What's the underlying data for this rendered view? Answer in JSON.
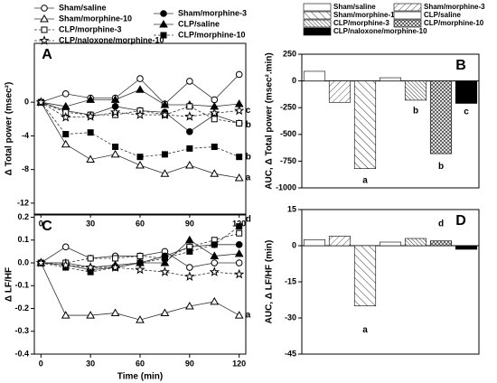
{
  "chart_data": [
    {
      "type": "line",
      "panel": "A",
      "ylabel": "Δ Total power (msec²)",
      "x": [
        0,
        15,
        30,
        45,
        60,
        75,
        90,
        105,
        120
      ],
      "xlim": [
        -4,
        124
      ],
      "xticks": [
        0,
        30,
        60,
        90,
        120
      ],
      "ylim": [
        -13.3,
        7
      ],
      "yticks": [
        -12,
        -8,
        -4,
        0
      ],
      "series": [
        {
          "name": "Sham/saline",
          "marker": "circle",
          "filled": false,
          "dashed": false,
          "values": [
            0,
            1,
            0.5,
            0.5,
            2.8,
            -0.2,
            2.5,
            0.3,
            3.3
          ]
        },
        {
          "name": "Sham/morphine-3",
          "marker": "circle",
          "filled": true,
          "dashed": false,
          "values": [
            0,
            -1,
            -1.5,
            -0.5,
            -1,
            -1.2,
            -3.5,
            -1.5,
            -2.5
          ]
        },
        {
          "name": "Sham/morphine-10",
          "marker": "triangle",
          "filled": false,
          "dashed": false,
          "values": [
            0,
            -5,
            -6.8,
            -6.2,
            -7.5,
            -8.5,
            -7.5,
            -8.5,
            -9
          ]
        },
        {
          "name": "CLP/saline",
          "marker": "triangle",
          "filled": true,
          "dashed": false,
          "values": [
            0,
            -0.5,
            0.3,
            0.3,
            1.5,
            -0.3,
            -0.3,
            -0.5,
            -0.2
          ]
        },
        {
          "name": "CLP/morphine-3",
          "marker": "square",
          "filled": false,
          "dashed": true,
          "values": [
            0,
            -1.2,
            -1.5,
            -1.5,
            -1,
            -1.5,
            -0.5,
            -2,
            -2.5
          ]
        },
        {
          "name": "CLP/morphine-10",
          "marker": "square",
          "filled": true,
          "dashed": true,
          "values": [
            0,
            -3.8,
            -3.6,
            -5.3,
            -6.5,
            -6.2,
            -5.5,
            -5.3,
            -6.5
          ]
        },
        {
          "name": "CLP/naloxone/morphine-10",
          "marker": "star",
          "filled": false,
          "dashed": true,
          "values": [
            0,
            -1.8,
            -1.7,
            -1.2,
            -1.5,
            -1.5,
            -1.7,
            -1.3,
            -1
          ]
        }
      ],
      "annotations": [
        {
          "x": 120,
          "y": -1,
          "text": "c"
        },
        {
          "x": 120,
          "y": -2.7,
          "text": "b"
        },
        {
          "x": 120,
          "y": -6.5,
          "text": "b"
        },
        {
          "x": 120,
          "y": -9,
          "text": "a"
        }
      ]
    },
    {
      "type": "bar",
      "panel": "B",
      "ylabel": "AUC, Δ Total power (msec².min)",
      "categories": [
        "Sham/saline",
        "Sham/morphine-3",
        "Sham/morphine-10",
        "CLP/saline",
        "CLP/morphine-3",
        "CLP/morphine-10",
        "CLP/naloxone/morphine-10"
      ],
      "fills": [
        "white",
        "diag",
        "backdiag",
        "white",
        "dense",
        "cross",
        "black"
      ],
      "values": [
        90,
        -200,
        -820,
        30,
        -180,
        -680,
        -210
      ],
      "ylim": [
        -1000,
        250
      ],
      "yticks": [
        -1000,
        -750,
        -500,
        -250,
        0,
        250
      ],
      "annotations": [
        {
          "index": 2,
          "y": -930,
          "text": "a"
        },
        {
          "index": 4,
          "y": -280,
          "text": "b"
        },
        {
          "index": 5,
          "y": -800,
          "text": "b"
        },
        {
          "index": 6,
          "y": -290,
          "text": "c"
        }
      ]
    },
    {
      "type": "line",
      "panel": "C",
      "ylabel": "Δ LF/HF",
      "xlabel": "Time (min)",
      "x": [
        0,
        15,
        30,
        45,
        60,
        75,
        90,
        105,
        120
      ],
      "xlim": [
        -4,
        124
      ],
      "xticks": [
        0,
        30,
        60,
        90,
        120
      ],
      "ylim": [
        -0.4,
        0.21
      ],
      "yticks": [
        -0.4,
        -0.3,
        -0.2,
        -0.1,
        {
          "value": 0,
          "label": "0.0"
        },
        0.1,
        0.2
      ],
      "series": [
        {
          "marker": "circle",
          "filled": false,
          "dashed": false,
          "values": [
            0,
            0.07,
            0.02,
            0.03,
            0.03,
            0.05,
            -0.02,
            0,
            0
          ]
        },
        {
          "marker": "circle",
          "filled": true,
          "dashed": false,
          "values": [
            0,
            -0.01,
            -0.03,
            -0.02,
            0,
            0.03,
            0.07,
            0.08,
            0.08
          ]
        },
        {
          "marker": "triangle",
          "filled": false,
          "dashed": false,
          "values": [
            0,
            -0.23,
            -0.23,
            -0.22,
            -0.25,
            -0.22,
            -0.19,
            -0.17,
            -0.23
          ]
        },
        {
          "marker": "triangle",
          "filled": true,
          "dashed": false,
          "values": [
            0,
            0,
            -0.02,
            -0.01,
            0,
            0,
            0.1,
            0.03,
            0.04
          ]
        },
        {
          "marker": "square",
          "filled": false,
          "dashed": true,
          "values": [
            0,
            0,
            0.02,
            0.02,
            0.03,
            0.02,
            0.07,
            0.1,
            0.13
          ]
        },
        {
          "marker": "square",
          "filled": true,
          "dashed": true,
          "values": [
            0,
            -0.02,
            -0.04,
            -0.02,
            0,
            0.02,
            0.05,
            0.08,
            0.16
          ]
        },
        {
          "marker": "star",
          "filled": false,
          "dashed": true,
          "values": [
            0,
            -0.01,
            -0.02,
            -0.02,
            -0.03,
            -0.04,
            -0.06,
            -0.04,
            -0.05
          ]
        }
      ],
      "annotations": [
        {
          "x": 120,
          "y": 0.19,
          "text": "d"
        },
        {
          "x": 120,
          "y": -0.23,
          "text": "a"
        }
      ]
    },
    {
      "type": "bar",
      "panel": "D",
      "ylabel": "AUC, Δ LF/HF (min)",
      "fills": [
        "white",
        "diag",
        "backdiag",
        "white",
        "dense",
        "cross",
        "black"
      ],
      "values": [
        2.5,
        4,
        -25,
        1.5,
        3,
        2,
        -1.5
      ],
      "ylim": [
        -45,
        15
      ],
      "yticks": [
        -45,
        -30,
        -15,
        0,
        15
      ],
      "annotations": [
        {
          "index": 2,
          "y": -35,
          "text": "a"
        },
        {
          "index": 5,
          "y": 9,
          "text": "d"
        }
      ]
    }
  ]
}
